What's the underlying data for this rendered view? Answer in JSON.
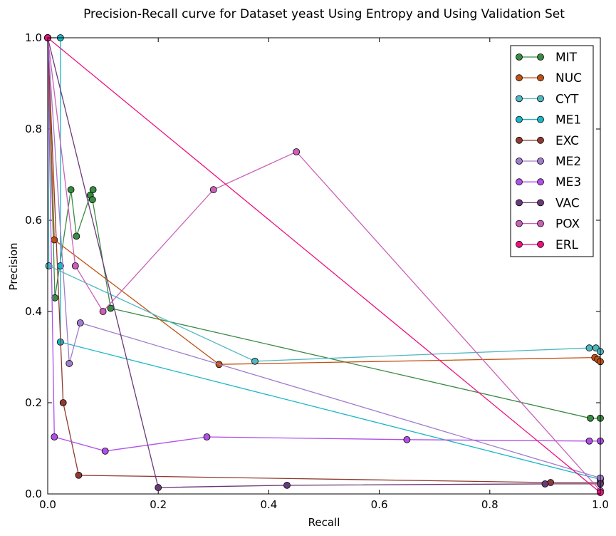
{
  "chart_data": {
    "type": "line",
    "title": "Precision-Recall curve for Dataset yeast Using Entropy and Using Validation Set",
    "xlabel": "Recall",
    "ylabel": "Precision",
    "xlim": [
      0.0,
      1.0
    ],
    "ylim": [
      0.0,
      1.0
    ],
    "xticks": [
      "0.0",
      "0.2",
      "0.4",
      "0.6",
      "0.8",
      "1.0"
    ],
    "yticks": [
      "0.0",
      "0.2",
      "0.4",
      "0.6",
      "0.8",
      "1.0"
    ],
    "grid": false,
    "legend_position": "top-right",
    "series": [
      {
        "name": "MIT",
        "color": "#3a8a44",
        "x": [
          0.0,
          0.013,
          0.042,
          0.052,
          0.077,
          0.082,
          0.081,
          0.114,
          0.982,
          1.0
        ],
        "y": [
          1.0,
          0.43,
          0.667,
          0.565,
          0.655,
          0.667,
          0.645,
          0.407,
          0.166,
          0.166
        ]
      },
      {
        "name": "NUC",
        "color": "#c05214",
        "x": [
          0.0,
          0.012,
          0.31,
          0.99,
          0.995,
          1.0
        ],
        "y": [
          1.0,
          0.557,
          0.284,
          0.299,
          0.295,
          0.29
        ]
      },
      {
        "name": "CYT",
        "color": "#4fb8c0",
        "x": [
          0.0,
          0.002,
          0.375,
          0.98,
          0.992,
          1.0
        ],
        "y": [
          1.0,
          0.5,
          0.291,
          0.32,
          0.32,
          0.312
        ]
      },
      {
        "name": "ME1",
        "color": "#1ab6c7",
        "x": [
          0.0,
          0.023,
          0.023,
          0.023,
          1.0
        ],
        "y": [
          1.0,
          1.0,
          0.5,
          0.333,
          0.032
        ]
      },
      {
        "name": "EXC",
        "color": "#8f3a30",
        "x": [
          0.0,
          0.028,
          0.056,
          0.91,
          1.0
        ],
        "y": [
          1.0,
          0.2,
          0.041,
          0.025,
          0.025
        ]
      },
      {
        "name": "ME2",
        "color": "#a07ccc",
        "x": [
          0.0,
          0.039,
          0.059,
          1.0
        ],
        "y": [
          1.0,
          0.286,
          0.375,
          0.035
        ]
      },
      {
        "name": "ME3",
        "color": "#b050e8",
        "x": [
          0.0,
          0.012,
          0.104,
          0.288,
          0.65,
          0.98,
          1.0
        ],
        "y": [
          1.0,
          0.125,
          0.094,
          0.125,
          0.119,
          0.116,
          0.116
        ]
      },
      {
        "name": "VAC",
        "color": "#6a3a78",
        "x": [
          0.0,
          0.2,
          0.433,
          0.9,
          1.0
        ],
        "y": [
          1.0,
          0.014,
          0.019,
          0.022,
          0.022
        ]
      },
      {
        "name": "POX",
        "color": "#cc60b8",
        "x": [
          0.0,
          0.05,
          0.1,
          0.3,
          0.45,
          1.0
        ],
        "y": [
          1.0,
          0.5,
          0.4,
          0.667,
          0.75,
          0.007
        ]
      },
      {
        "name": "ERL",
        "color": "#ee1080",
        "x": [
          0.0,
          1.0
        ],
        "y": [
          1.0,
          0.003
        ]
      }
    ]
  }
}
